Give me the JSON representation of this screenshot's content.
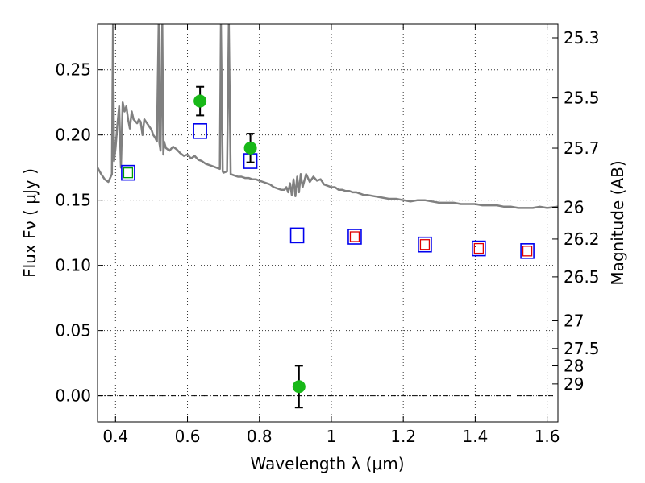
{
  "chart_data": {
    "type": "scatter",
    "title": "",
    "xlabel": "Wavelength  λ (μm)",
    "ylabel": "Flux  Fν  ( μJy )",
    "ylabel_right": "Magnitude (AB)",
    "xlim": [
      0.35,
      1.63
    ],
    "ylim": [
      -0.02,
      0.285
    ],
    "grid": true,
    "legend": "none",
    "x_ticks": [
      0.4,
      0.6,
      0.8,
      1.0,
      1.2,
      1.4,
      1.6
    ],
    "x_tick_labels": [
      "0.4",
      "0.6",
      "0.8",
      "1",
      "1.2",
      "1.4",
      "1.6"
    ],
    "y_ticks": [
      0.0,
      0.05,
      0.1,
      0.15,
      0.2,
      0.25
    ],
    "y_tick_labels": [
      "0.00",
      "0.05",
      "0.10",
      "0.15",
      "0.20",
      "0.25"
    ],
    "right_ticks": [
      {
        "label": "25.3",
        "flux": 0.2745
      },
      {
        "label": "25.5",
        "flux": 0.2284
      },
      {
        "label": "25.7",
        "flux": 0.1899
      },
      {
        "label": "26",
        "flux": 0.1445
      },
      {
        "label": "26.2",
        "flux": 0.1202
      },
      {
        "label": "26.5",
        "flux": 0.0912
      },
      {
        "label": "27",
        "flux": 0.0575
      },
      {
        "label": "27.5",
        "flux": 0.0363
      },
      {
        "label": "28",
        "flux": 0.0229
      },
      {
        "label": "29",
        "flux": 0.0091
      }
    ],
    "colors": {
      "spectrum": "#808080",
      "observed": "#17b817",
      "model_blue": "#0000ee",
      "model_red": "#e00000",
      "model_green": "#00a000",
      "grid": "#000000",
      "zero_line": "#000000"
    },
    "series": [
      {
        "kind": "spectrum",
        "points": [
          [
            0.35,
            0.175
          ],
          [
            0.36,
            0.17
          ],
          [
            0.37,
            0.166
          ],
          [
            0.38,
            0.164
          ],
          [
            0.39,
            0.17
          ],
          [
            0.393,
            0.285
          ],
          [
            0.396,
            0.18
          ],
          [
            0.4,
            0.19
          ],
          [
            0.405,
            0.207
          ],
          [
            0.41,
            0.222
          ],
          [
            0.415,
            0.175
          ],
          [
            0.42,
            0.225
          ],
          [
            0.425,
            0.218
          ],
          [
            0.43,
            0.222
          ],
          [
            0.435,
            0.212
          ],
          [
            0.44,
            0.205
          ],
          [
            0.445,
            0.218
          ],
          [
            0.45,
            0.212
          ],
          [
            0.46,
            0.209
          ],
          [
            0.465,
            0.212
          ],
          [
            0.47,
            0.21
          ],
          [
            0.475,
            0.2
          ],
          [
            0.48,
            0.212
          ],
          [
            0.485,
            0.21
          ],
          [
            0.49,
            0.208
          ],
          [
            0.5,
            0.204
          ],
          [
            0.505,
            0.2
          ],
          [
            0.51,
            0.198
          ],
          [
            0.515,
            0.195
          ],
          [
            0.52,
            0.285
          ],
          [
            0.522,
            0.194
          ],
          [
            0.525,
            0.188
          ],
          [
            0.53,
            0.285
          ],
          [
            0.533,
            0.185
          ],
          [
            0.535,
            0.195
          ],
          [
            0.54,
            0.19
          ],
          [
            0.55,
            0.188
          ],
          [
            0.56,
            0.191
          ],
          [
            0.57,
            0.189
          ],
          [
            0.58,
            0.186
          ],
          [
            0.59,
            0.184
          ],
          [
            0.6,
            0.185
          ],
          [
            0.61,
            0.182
          ],
          [
            0.62,
            0.184
          ],
          [
            0.63,
            0.181
          ],
          [
            0.64,
            0.18
          ],
          [
            0.65,
            0.178
          ],
          [
            0.66,
            0.177
          ],
          [
            0.67,
            0.176
          ],
          [
            0.68,
            0.175
          ],
          [
            0.69,
            0.174
          ],
          [
            0.693,
            0.285
          ],
          [
            0.698,
            0.172
          ],
          [
            0.7,
            0.171
          ],
          [
            0.71,
            0.172
          ],
          [
            0.715,
            0.285
          ],
          [
            0.72,
            0.17
          ],
          [
            0.73,
            0.169
          ],
          [
            0.74,
            0.168
          ],
          [
            0.75,
            0.168
          ],
          [
            0.76,
            0.167
          ],
          [
            0.77,
            0.167
          ],
          [
            0.78,
            0.166
          ],
          [
            0.79,
            0.166
          ],
          [
            0.8,
            0.165
          ],
          [
            0.81,
            0.164
          ],
          [
            0.82,
            0.163
          ],
          [
            0.83,
            0.162
          ],
          [
            0.84,
            0.16
          ],
          [
            0.85,
            0.159
          ],
          [
            0.86,
            0.158
          ],
          [
            0.87,
            0.158
          ],
          [
            0.875,
            0.16
          ],
          [
            0.88,
            0.156
          ],
          [
            0.885,
            0.163
          ],
          [
            0.89,
            0.154
          ],
          [
            0.895,
            0.166
          ],
          [
            0.9,
            0.153
          ],
          [
            0.905,
            0.168
          ],
          [
            0.91,
            0.156
          ],
          [
            0.915,
            0.17
          ],
          [
            0.92,
            0.16
          ],
          [
            0.93,
            0.17
          ],
          [
            0.94,
            0.164
          ],
          [
            0.95,
            0.168
          ],
          [
            0.96,
            0.165
          ],
          [
            0.97,
            0.166
          ],
          [
            0.98,
            0.162
          ],
          [
            0.99,
            0.161
          ],
          [
            1.0,
            0.16
          ],
          [
            1.01,
            0.16
          ],
          [
            1.02,
            0.158
          ],
          [
            1.03,
            0.158
          ],
          [
            1.04,
            0.157
          ],
          [
            1.05,
            0.157
          ],
          [
            1.06,
            0.156
          ],
          [
            1.07,
            0.156
          ],
          [
            1.08,
            0.155
          ],
          [
            1.09,
            0.154
          ],
          [
            1.1,
            0.154
          ],
          [
            1.12,
            0.153
          ],
          [
            1.14,
            0.152
          ],
          [
            1.16,
            0.151
          ],
          [
            1.18,
            0.151
          ],
          [
            1.2,
            0.15
          ],
          [
            1.22,
            0.149
          ],
          [
            1.24,
            0.15
          ],
          [
            1.26,
            0.15
          ],
          [
            1.28,
            0.149
          ],
          [
            1.3,
            0.148
          ],
          [
            1.32,
            0.148
          ],
          [
            1.34,
            0.148
          ],
          [
            1.36,
            0.147
          ],
          [
            1.38,
            0.147
          ],
          [
            1.4,
            0.147
          ],
          [
            1.42,
            0.146
          ],
          [
            1.44,
            0.146
          ],
          [
            1.46,
            0.146
          ],
          [
            1.48,
            0.145
          ],
          [
            1.5,
            0.145
          ],
          [
            1.52,
            0.144
          ],
          [
            1.54,
            0.144
          ],
          [
            1.56,
            0.144
          ],
          [
            1.58,
            0.145
          ],
          [
            1.6,
            0.144
          ],
          [
            1.63,
            0.145
          ]
        ]
      },
      {
        "kind": "observed",
        "points": [
          {
            "x": 0.635,
            "y": 0.226,
            "err": 0.011
          },
          {
            "x": 0.775,
            "y": 0.19,
            "err": 0.011
          },
          {
            "x": 0.91,
            "y": 0.007,
            "err": 0.016
          }
        ]
      },
      {
        "kind": "model_blue",
        "points": [
          {
            "x": 0.435,
            "y": 0.171
          },
          {
            "x": 0.635,
            "y": 0.203
          },
          {
            "x": 0.775,
            "y": 0.18
          },
          {
            "x": 0.905,
            "y": 0.123
          },
          {
            "x": 1.065,
            "y": 0.122
          },
          {
            "x": 1.26,
            "y": 0.116
          },
          {
            "x": 1.41,
            "y": 0.113
          },
          {
            "x": 1.545,
            "y": 0.111
          }
        ]
      },
      {
        "kind": "model_red",
        "points": [
          {
            "x": 1.065,
            "y": 0.122
          },
          {
            "x": 1.26,
            "y": 0.116
          },
          {
            "x": 1.41,
            "y": 0.113
          },
          {
            "x": 1.545,
            "y": 0.111
          }
        ]
      },
      {
        "kind": "model_green",
        "points": [
          {
            "x": 0.435,
            "y": 0.171
          }
        ]
      }
    ]
  }
}
